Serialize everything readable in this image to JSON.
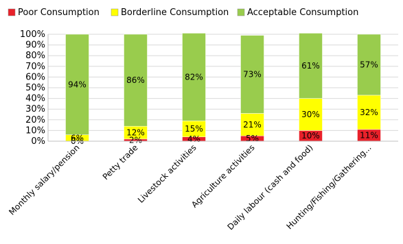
{
  "chart_data": {
    "type": "bar",
    "stacked": true,
    "percent_stacked": true,
    "categories": [
      "Monthly salary/pension",
      "Petty trade",
      "Livestock activities",
      "Agriculture activities",
      "Daily labour (cash and food)",
      "Hunting/Fishing/Gathering..."
    ],
    "series": [
      {
        "name": "Poor Consumption",
        "color": "#e8212a",
        "values": [
          0,
          2,
          4,
          5,
          10,
          11
        ],
        "labels": [
          "0%",
          "2%",
          "4%",
          "5%",
          "10%",
          "11%"
        ]
      },
      {
        "name": "Borderline Consumption",
        "color": "#ffff00",
        "values": [
          6,
          12,
          15,
          21,
          30,
          32
        ],
        "labels": [
          "6%",
          "12%",
          "15%",
          "21%",
          "30%",
          "32%"
        ]
      },
      {
        "name": "Acceptable Consumption",
        "color": "#99cc4d",
        "values": [
          94,
          86,
          82,
          73,
          61,
          57
        ],
        "labels": [
          "94%",
          "86%",
          "82%",
          "73%",
          "61%",
          "57%"
        ]
      }
    ],
    "ylim": [
      0,
      100
    ],
    "yticks": [
      "0%",
      "10%",
      "20%",
      "30%",
      "40%",
      "50%",
      "60%",
      "70%",
      "80%",
      "90%",
      "100%"
    ],
    "grid": true,
    "legend_position": "top"
  }
}
